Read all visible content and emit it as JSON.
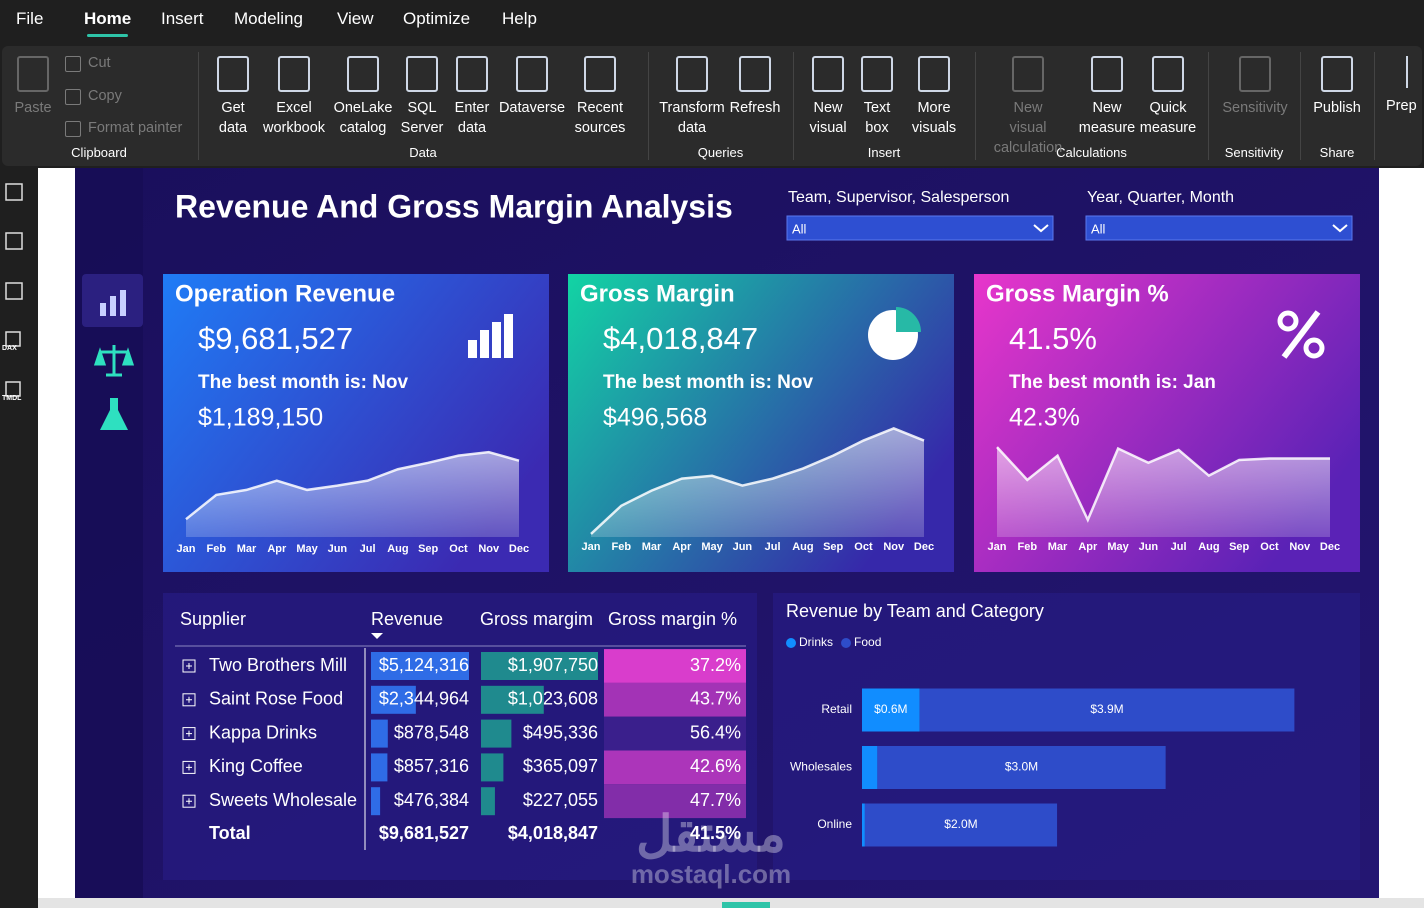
{
  "menu": {
    "items": [
      "File",
      "Home",
      "Insert",
      "Modeling",
      "View",
      "Optimize",
      "Help"
    ],
    "active": 1
  },
  "ribbon": {
    "groups": [
      {
        "label": "Clipboard",
        "buttons": [
          {
            "label": "Paste",
            "enabled": false
          }
        ],
        "small_buttons": [
          {
            "label": "Cut",
            "enabled": false
          },
          {
            "label": "Copy",
            "enabled": false
          },
          {
            "label": "Format painter",
            "enabled": false
          }
        ]
      },
      {
        "label": "Data",
        "buttons": [
          {
            "label": "Get data",
            "enabled": true
          },
          {
            "label": "Excel workbook",
            "enabled": true
          },
          {
            "label": "OneLake catalog",
            "enabled": true
          },
          {
            "label": "SQL Server",
            "enabled": true
          },
          {
            "label": "Enter data",
            "enabled": true
          },
          {
            "label": "Dataverse",
            "enabled": true
          },
          {
            "label": "Recent sources",
            "enabled": true
          }
        ]
      },
      {
        "label": "Queries",
        "buttons": [
          {
            "label": "Transform data",
            "enabled": true
          },
          {
            "label": "Refresh",
            "enabled": true
          }
        ]
      },
      {
        "label": "Insert",
        "buttons": [
          {
            "label": "New visual",
            "enabled": true
          },
          {
            "label": "Text box",
            "enabled": true
          },
          {
            "label": "More visuals",
            "enabled": true
          }
        ]
      },
      {
        "label": "Calculations",
        "buttons": [
          {
            "label": "New visual calculation",
            "enabled": false
          },
          {
            "label": "New measure",
            "enabled": true
          },
          {
            "label": "Quick measure",
            "enabled": true
          }
        ]
      },
      {
        "label": "Sensitivity",
        "buttons": [
          {
            "label": "Sensitivity",
            "enabled": false
          }
        ]
      },
      {
        "label": "Share",
        "buttons": [
          {
            "label": "Publish",
            "enabled": true
          }
        ]
      }
    ],
    "overflow_button": "Prep"
  },
  "sidebar": {
    "icon_labels": [
      "DAX",
      "TMDL"
    ]
  },
  "report": {
    "title": "Revenue And Gross Margin Analysis",
    "slicers": [
      {
        "label": "Team, Supervisor, Salesperson",
        "value": "All"
      },
      {
        "label": "Year, Quarter, Month",
        "value": "All"
      }
    ],
    "cards": [
      {
        "title": "Operation Revenue",
        "value": "$9,681,527",
        "best_month": "The best month is: Nov",
        "best_value": "$1,189,150"
      },
      {
        "title": "Gross Margin",
        "value": "$4,018,847",
        "best_month": "The best month is: Nov",
        "best_value": "$496,568"
      },
      {
        "title": "Gross Margin %",
        "value": "41.5%",
        "best_month": "The best month is: Jan",
        "best_value": "42.3%"
      }
    ],
    "watermark": {
      "arabic": "مستقل",
      "latin": "mostaql.com"
    }
  },
  "table": {
    "columns": [
      "Supplier",
      "Revenue",
      "Gross margim",
      "Gross margin %"
    ],
    "suppliers": [
      "Two Brothers Mill",
      "Saint Rose Food",
      "Kappa Drinks",
      "King Coffee",
      "Sweets Wholesale"
    ],
    "revenue": {
      "values": [
        5124316,
        2344964,
        878548,
        857316,
        476384
      ],
      "value_labels": [
        "$5,124,316",
        "$2,344,964",
        "$878,548",
        "$857,316",
        "$476,384"
      ],
      "color": "#2f6ce6"
    },
    "gross_margin": {
      "values": [
        1907750,
        1023608,
        495336,
        365097,
        227055
      ],
      "value_labels": [
        "$1,907,750",
        "$1,023,608",
        "$495,336",
        "$365,097",
        "$227,055"
      ],
      "color": "#1f8a8e"
    },
    "gross_margin_pct": {
      "values": [
        37.2,
        43.7,
        56.4,
        42.6,
        47.7
      ],
      "value_labels": [
        "37.2%",
        "43.7%",
        "56.4%",
        "42.6%",
        "47.7%"
      ],
      "color_low": "#d93dcc",
      "color_high": "#3a1f8c"
    },
    "total": {
      "label": "Total",
      "revenue": "$9,681,527",
      "gross_margin": "$4,018,847",
      "gross_margin_pct": "41.5%"
    }
  },
  "chart_data": [
    {
      "type": "area",
      "categories": [
        "Jan",
        "Feb",
        "Mar",
        "Apr",
        "May",
        "Jun",
        "Jul",
        "Aug",
        "Sep",
        "Oct",
        "Nov",
        "Dec"
      ],
      "values": [
        250000,
        590000,
        660000,
        790000,
        660000,
        720000,
        790000,
        950000,
        1040000,
        1140000,
        1189150,
        1070000
      ],
      "ylim": [
        0,
        1640000
      ],
      "color": "#ffffff"
    },
    {
      "type": "area",
      "categories": [
        "Jan",
        "Feb",
        "Mar",
        "Apr",
        "May",
        "Jun",
        "Jul",
        "Aug",
        "Sep",
        "Oct",
        "Nov",
        "Dec"
      ],
      "values": [
        14000,
        143000,
        212000,
        267000,
        280000,
        235000,
        267000,
        313000,
        372000,
        441000,
        496568,
        441000
      ],
      "ylim": [
        0,
        535000
      ],
      "color": "#ffffff"
    },
    {
      "type": "area",
      "categories": [
        "Jan",
        "Feb",
        "Mar",
        "Apr",
        "May",
        "Jun",
        "Jul",
        "Aug",
        "Sep",
        "Oct",
        "Nov",
        "Dec"
      ],
      "values": [
        42.3,
        40.0,
        41.7,
        37.2,
        42.2,
        41.2,
        42.1,
        40.3,
        41.4,
        41.5,
        41.5,
        41.5
      ],
      "ylim": [
        36,
        44.2
      ],
      "color": "#ffffff"
    },
    {
      "type": "hbar-stacked",
      "title": "Revenue by Team and Category",
      "categories": [
        "Retail",
        "Wholesales",
        "Online"
      ],
      "series": [
        {
          "name": "Drinks",
          "color": "#118dff",
          "values": [
            600000,
            160000,
            30000
          ],
          "value_labels": [
            "$0.6M",
            null,
            null
          ]
        },
        {
          "name": "Food",
          "color": "#2e4cc9",
          "values": [
            3900000,
            3000000,
            2000000
          ],
          "value_labels": [
            "$3.9M",
            "$3.0M",
            "$2.0M"
          ]
        }
      ],
      "xlim": [
        0,
        4600000
      ],
      "legend": "top-left"
    }
  ]
}
